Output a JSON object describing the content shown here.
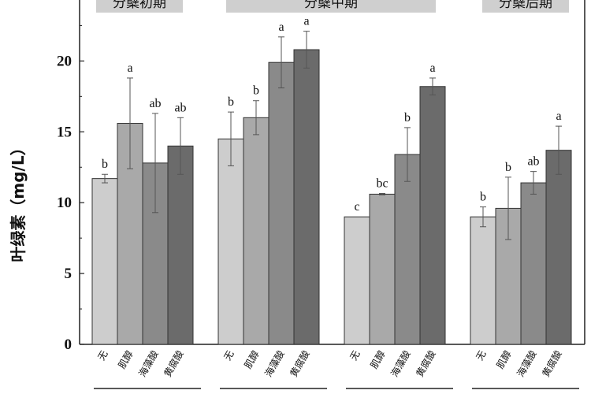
{
  "chart_data": {
    "type": "bar",
    "ylabel": "叶绿素（mg/L）",
    "ylim": [
      0,
      24
    ],
    "yticks": [
      "0",
      "5",
      "10",
      "15",
      "20"
    ],
    "ytick_values": [
      0,
      5,
      10,
      15,
      20
    ],
    "categories": [
      "无",
      "肌醇",
      "海藻酸",
      "黄腐酸"
    ],
    "stages": [
      {
        "name": "分蘖初期",
        "values": [
          11.7,
          15.6,
          12.8,
          14.0
        ],
        "errors": [
          0.3,
          3.2,
          3.5,
          2.0
        ],
        "letters": [
          "b",
          "a",
          "ab",
          "ab"
        ]
      },
      {
        "name": "分蘖中期",
        "values": [
          14.5,
          16.0,
          19.9,
          20.8
        ],
        "errors": [
          1.9,
          1.2,
          1.8,
          1.3
        ],
        "letters": [
          "b",
          "b",
          "a",
          "a"
        ]
      },
      {
        "name": "",
        "values": [
          9.0,
          10.6,
          13.4,
          18.2
        ],
        "errors": [
          0.0,
          0.05,
          1.9,
          0.6
        ],
        "letters": [
          "c",
          "bc",
          "b",
          "a"
        ]
      },
      {
        "name": "分蘖后期",
        "values": [
          9.0,
          9.6,
          11.4,
          13.7
        ],
        "errors": [
          0.7,
          2.2,
          0.8,
          1.7
        ],
        "letters": [
          "b",
          "b",
          "ab",
          "a"
        ]
      }
    ],
    "colors": [
      "#cdcdcd",
      "#a9a9a9",
      "#8a8a8a",
      "#6b6b6b"
    ],
    "grid": false
  }
}
